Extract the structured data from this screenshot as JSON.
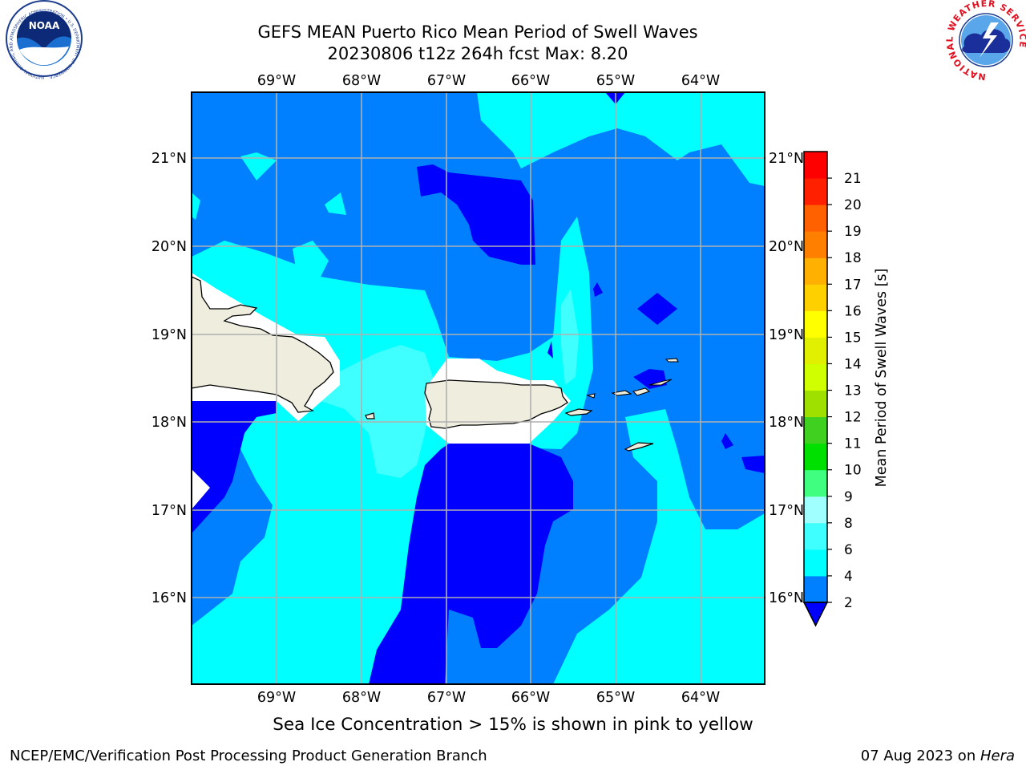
{
  "header": {
    "title_line1": "GEFS MEAN Puerto Rico Mean Period of Swell Waves",
    "title_line2": "20230806 t12z 264h fcst   Max: 8.20"
  },
  "logos": {
    "noaa_text": "NOAA",
    "noaa_ring_text": "NATIONAL OCEANIC AND ATMOSPHERIC ADMINISTRATION • U.S. DEPARTMENT OF COMMERCE",
    "nws_ring_text": "NATIONAL WEATHER SERVICE"
  },
  "map": {
    "lon_labels": [
      "69°W",
      "68°W",
      "67°W",
      "66°W",
      "65°W",
      "64°W"
    ],
    "lat_labels": [
      "21°N",
      "20°N",
      "19°N",
      "18°N",
      "17°N",
      "16°N"
    ],
    "extent": {
      "lon_min": -70.0,
      "lon_max": -63.3,
      "lat_min": 15.0,
      "lat_max": 21.75
    },
    "grid": true,
    "colors": {
      "band_2_4": "#0080ff",
      "band_4_6": "#00ffff",
      "band_6_8": "#40ffff",
      "below_2": "#0000ff",
      "land": "#efedde",
      "gridline": "#b0b0b0"
    }
  },
  "colorbar": {
    "label": "Mean Period of Swell Waves [s]",
    "ticks": [
      "2",
      "4",
      "6",
      "8",
      "9",
      "10",
      "11",
      "12",
      "13",
      "14",
      "15",
      "16",
      "17",
      "18",
      "19",
      "20",
      "21"
    ],
    "bands": [
      "#0080ff",
      "#00ffff",
      "#40ffff",
      "#a0ffff",
      "#40ff80",
      "#00e000",
      "#40d020",
      "#a0e000",
      "#d0ff00",
      "#e0f000",
      "#ffff00",
      "#ffd000",
      "#ffb000",
      "#ff8000",
      "#ff6000",
      "#ff2000",
      "#ff0000"
    ],
    "extend_below_color": "#0000ff",
    "position": "right"
  },
  "note": "Sea Ice Concentration > 15% is shown in pink to yellow",
  "footer": {
    "left": "NCEP/EMC/Verification Post Processing Product Generation Branch",
    "right_prefix": "07 Aug 2023 on ",
    "right_host": "Hera"
  }
}
